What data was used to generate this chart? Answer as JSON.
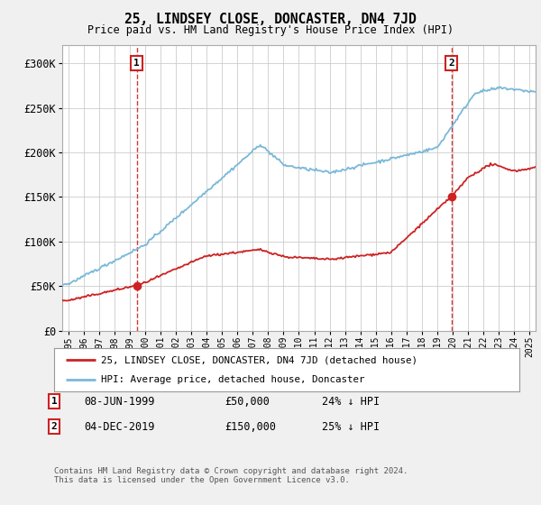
{
  "title": "25, LINDSEY CLOSE, DONCASTER, DN4 7JD",
  "subtitle": "Price paid vs. HM Land Registry's House Price Index (HPI)",
  "bg_color": "#f0f0f0",
  "plot_bg_color": "#ffffff",
  "grid_color": "#cccccc",
  "hpi_color": "#7ab8d9",
  "house_color": "#cc2222",
  "dashed_color": "#cc2222",
  "marker1_date_x": 1999.44,
  "marker1_price": 50000,
  "marker2_date_x": 2019.92,
  "marker2_price": 150000,
  "ylim": [
    0,
    320000
  ],
  "xlim": [
    1994.6,
    2025.4
  ],
  "yticks": [
    0,
    50000,
    100000,
    150000,
    200000,
    250000,
    300000
  ],
  "ytick_labels": [
    "£0",
    "£50K",
    "£100K",
    "£150K",
    "£200K",
    "£250K",
    "£300K"
  ],
  "xticks": [
    1995,
    1996,
    1997,
    1998,
    1999,
    2000,
    2001,
    2002,
    2003,
    2004,
    2005,
    2006,
    2007,
    2008,
    2009,
    2010,
    2011,
    2012,
    2013,
    2014,
    2015,
    2016,
    2017,
    2018,
    2019,
    2020,
    2021,
    2022,
    2023,
    2024,
    2025
  ],
  "legend_house": "25, LINDSEY CLOSE, DONCASTER, DN4 7JD (detached house)",
  "legend_hpi": "HPI: Average price, detached house, Doncaster",
  "note1_label": "1",
  "note1_date": "08-JUN-1999",
  "note1_price": "£50,000",
  "note1_hpi": "24% ↓ HPI",
  "note2_label": "2",
  "note2_date": "04-DEC-2019",
  "note2_price": "£150,000",
  "note2_hpi": "25% ↓ HPI",
  "footer": "Contains HM Land Registry data © Crown copyright and database right 2024.\nThis data is licensed under the Open Government Licence v3.0."
}
